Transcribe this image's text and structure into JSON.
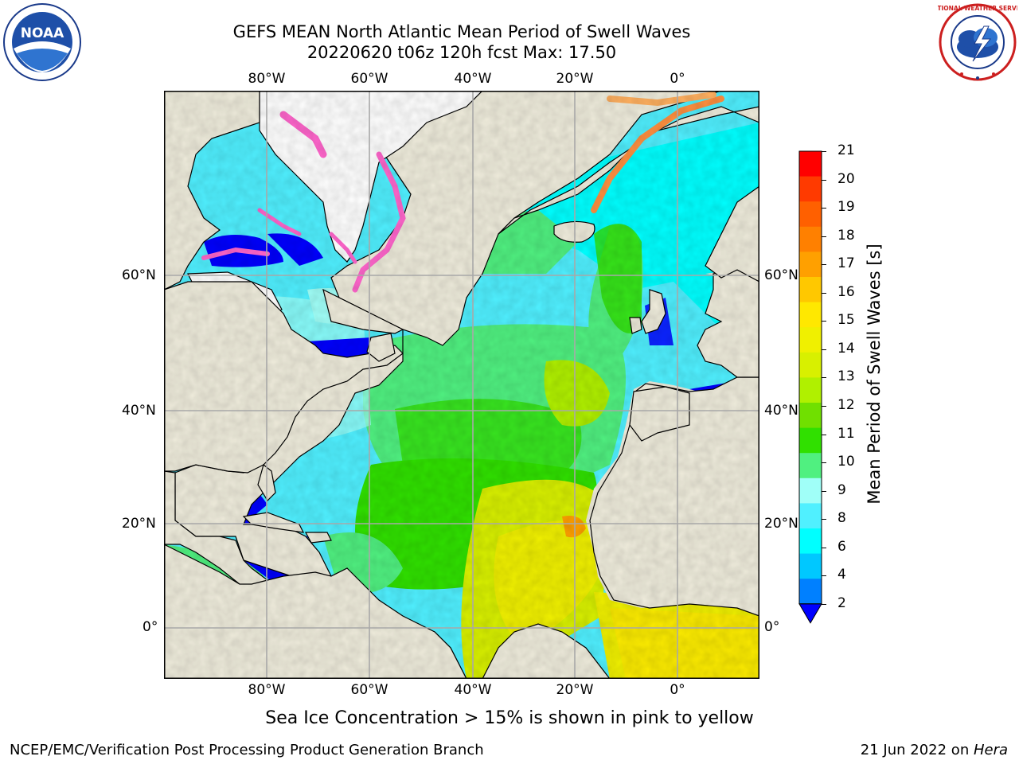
{
  "title": {
    "line1": "GEFS MEAN North Atlantic Mean Period of Swell Waves",
    "line2": "20220620 t06z 120h fcst   Max: 17.50"
  },
  "axes": {
    "lon_labels": [
      "80°W",
      "60°W",
      "40°W",
      "20°W",
      "0°"
    ],
    "lat_labels_left": [
      "60°N",
      "40°N",
      "20°N",
      "0°"
    ],
    "lat_labels_right": [
      "60°N",
      "40°N",
      "20°N",
      "0°"
    ]
  },
  "colorbar": {
    "title": "Mean Period of Swell Waves [s]",
    "ticks": [
      "21",
      "20",
      "19",
      "18",
      "17",
      "16",
      "15",
      "14",
      "13",
      "12",
      "11",
      "10",
      "9",
      "8",
      "6",
      "4",
      "2"
    ],
    "colors": [
      "#ff0000",
      "#ff3a00",
      "#ff6000",
      "#ff8000",
      "#ffa000",
      "#ffc800",
      "#ffe800",
      "#f0f000",
      "#d8f000",
      "#b0f000",
      "#70e000",
      "#30e000",
      "#50f080",
      "#a0fff8",
      "#50f0ff",
      "#00ffff",
      "#00c8ff",
      "#0080ff",
      "#0000ff"
    ]
  },
  "map_colors": {
    "land": "#efecdc",
    "ice_free_land_white": "#ffffff",
    "coast": "#000000",
    "grid": "#a8a8a8"
  },
  "caption": "Sea Ice Concentration > 15% is shown in pink to yellow",
  "footer": {
    "left": "NCEP/EMC/Verification Post Processing Product Generation Branch",
    "right_date": "21 Jun 2022 on ",
    "right_host": "Hera"
  },
  "logos": {
    "noaa_text": "NOAA",
    "nws_ring_text": "NATIONAL WEATHER SERVICE"
  }
}
